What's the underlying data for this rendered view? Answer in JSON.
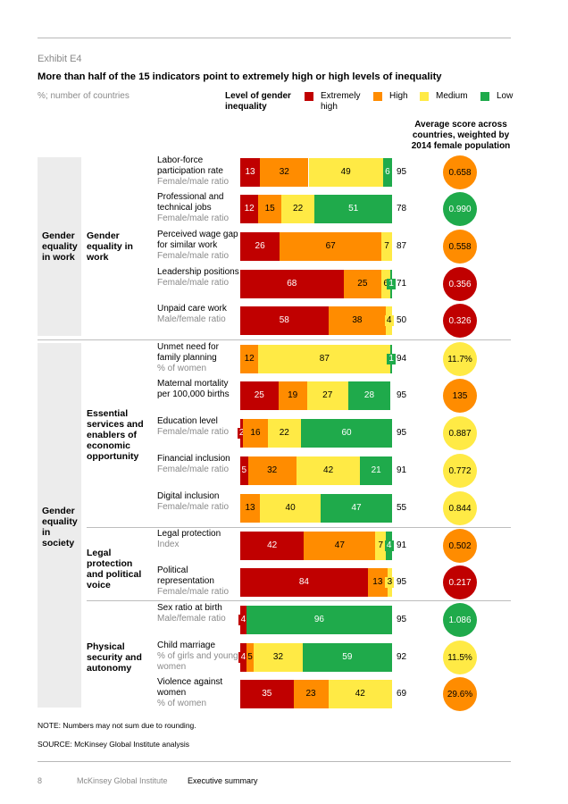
{
  "exhibit_label": "Exhibit E4",
  "title": "More than half of the 15 indicators point to extremely high or high levels of inequality",
  "units": "%; number of countries",
  "legend": {
    "title": "Level of gender inequality",
    "items": [
      {
        "label": "Extremely high",
        "color": "#c00000"
      },
      {
        "label": "High",
        "color": "#ff8c00"
      },
      {
        "label": "Medium",
        "color": "#ffea45"
      },
      {
        "label": "Low",
        "color": "#1faa4b"
      }
    ]
  },
  "avg_header": "Average score across countries, weighted by 2014 female population",
  "sections": [
    {
      "label": "Gender equality in work"
    },
    {
      "label": "Gender equality in society"
    }
  ],
  "subsections": [
    {
      "label": "Gender equality in work"
    },
    {
      "label": "Essential services and enablers of economic opportunity"
    },
    {
      "label": "Legal protection and political voice"
    },
    {
      "label": "Physical security and autonomy"
    }
  ],
  "chart_data": {
    "type": "bar",
    "stacked": true,
    "orientation": "horizontal",
    "series_names": [
      "Extremely high",
      "High",
      "Medium",
      "Low"
    ],
    "rows": [
      {
        "name": "Labor-force participation rate",
        "metric": "Female/male ratio",
        "values": [
          13,
          32,
          49,
          6
        ],
        "labels": [
          "13",
          "32",
          "49",
          "6"
        ],
        "count": "95",
        "avg": "0.658",
        "avg_level": 1
      },
      {
        "name": "Professional and technical jobs",
        "metric": "Female/male ratio",
        "values": [
          12,
          15,
          22,
          51
        ],
        "labels": [
          "12",
          "15",
          "22",
          "51"
        ],
        "count": "78",
        "avg": "0.990",
        "avg_level": 3
      },
      {
        "name": "Perceived wage gap for similar work",
        "metric": "Female/male ratio",
        "values": [
          26,
          67,
          7,
          0
        ],
        "labels": [
          "26",
          "67",
          "7",
          ""
        ],
        "count": "87",
        "avg": "0.558",
        "avg_level": 1
      },
      {
        "name": "Leadership positions",
        "metric": "Female/male ratio",
        "values": [
          68,
          25,
          6,
          1
        ],
        "labels": [
          "68",
          "25",
          "6",
          "1"
        ],
        "count": "71",
        "avg": "0.356",
        "avg_level": 0
      },
      {
        "name": "Unpaid care work",
        "metric": "Male/female ratio",
        "values": [
          58,
          38,
          4,
          0
        ],
        "labels": [
          "58",
          "38",
          "4",
          ""
        ],
        "count": "50",
        "avg": "0.326",
        "avg_level": 0
      },
      {
        "name": "Unmet need for family planning",
        "metric": "% of women",
        "values": [
          0,
          12,
          87,
          1
        ],
        "labels": [
          "",
          "12",
          "87",
          "1"
        ],
        "count": "94",
        "avg": "11.7%",
        "avg_level": 2
      },
      {
        "name": "Maternal mortality per 100,000 births",
        "metric": "",
        "values": [
          25,
          19,
          27,
          28
        ],
        "labels": [
          "25",
          "19",
          "27",
          "28"
        ],
        "count": "95",
        "avg": "135",
        "avg_level": 1
      },
      {
        "name": "Education level",
        "metric": "Female/male ratio",
        "values": [
          2,
          16,
          22,
          60
        ],
        "labels": [
          "2",
          "16",
          "22",
          "60"
        ],
        "count": "95",
        "avg": "0.887",
        "avg_level": 2
      },
      {
        "name": "Financial inclusion",
        "metric": "Female/male ratio",
        "values": [
          5,
          32,
          42,
          21
        ],
        "labels": [
          "5",
          "32",
          "42",
          "21"
        ],
        "count": "91",
        "avg": "0.772",
        "avg_level": 2
      },
      {
        "name": "Digital inclusion",
        "metric": "Female/male ratio",
        "values": [
          0,
          13,
          40,
          47
        ],
        "labels": [
          "",
          "13",
          "40",
          "47"
        ],
        "count": "55",
        "avg": "0.844",
        "avg_level": 2
      },
      {
        "name": "Legal protection",
        "metric": "Index",
        "values": [
          42,
          47,
          7,
          4
        ],
        "labels": [
          "42",
          "47",
          "7",
          "4"
        ],
        "count": "91",
        "avg": "0.502",
        "avg_level": 1
      },
      {
        "name": "Political representation",
        "metric": "Female/male ratio",
        "values": [
          84,
          13,
          3,
          0
        ],
        "labels": [
          "84",
          "13",
          "3",
          ""
        ],
        "count": "95",
        "avg": "0.217",
        "avg_level": 0
      },
      {
        "name": "Sex ratio at birth",
        "metric": "Male/female ratio",
        "values": [
          4,
          0,
          0,
          96
        ],
        "labels": [
          "4",
          "",
          "",
          "96"
        ],
        "count": "95",
        "avg": "1.086",
        "avg_level": 3
      },
      {
        "name": "Child marriage",
        "metric": "% of girls and young women",
        "values": [
          4,
          5,
          32,
          59
        ],
        "labels": [
          "4",
          "5",
          "32",
          "59"
        ],
        "count": "92",
        "avg": "11.5%",
        "avg_level": 2
      },
      {
        "name": "Violence against women",
        "metric": "% of women",
        "values": [
          35,
          23,
          42,
          0
        ],
        "labels": [
          "35",
          "23",
          "42",
          ""
        ],
        "count": "69",
        "avg": "29.6%",
        "avg_level": 1
      }
    ]
  },
  "note": "NOTE: Numbers may not sum due to rounding.",
  "source": "SOURCE: McKinsey Global Institute analysis",
  "footer": {
    "page": "8",
    "org": "McKinsey Global Institute",
    "section": "Executive summary"
  }
}
